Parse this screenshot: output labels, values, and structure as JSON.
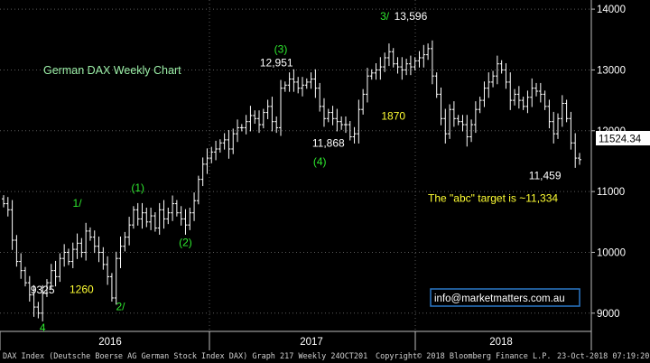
{
  "chart_data": {
    "type": "ohlc",
    "title": "German DAX Weekly Chart",
    "ylim": [
      8700,
      14150
    ],
    "y_ticks": [
      9000,
      10000,
      11000,
      12000,
      13000,
      14000
    ],
    "y_tick_labels": [
      "9000",
      "10000",
      "11000",
      "12000",
      "13000",
      "14000"
    ],
    "x_labels": [
      "2016",
      "2017",
      "2018"
    ],
    "last_price": 11524.34,
    "last_price_label": "11524.34",
    "colors": {
      "background": "#000000",
      "bars": "#ffffff",
      "grid": "#5a5a5a",
      "green_label": "#2ee82e",
      "yellow_label": "#ffff33",
      "title": "#9cf0a8",
      "white_label": "#ffffff",
      "email_box": "#2a78c8"
    },
    "series": [
      {
        "name": "DAX Index",
        "close": [
          10800,
          10700,
          10200,
          9850,
          9700,
          9500,
          9300,
          9100,
          9000,
          9325,
          9500,
          9700,
          9600,
          9900,
          10000,
          9850,
          10050,
          10150,
          10000,
          10350,
          10250,
          10100,
          10000,
          9800,
          9600,
          9250,
          9900,
          10100,
          10250,
          10450,
          10700,
          10550,
          10650,
          10500,
          10600,
          10400,
          10700,
          10550,
          10650,
          10800,
          10650,
          10550,
          10450,
          10650,
          10850,
          11200,
          11450,
          11550,
          11650,
          11700,
          11800,
          11850,
          11700,
          11950,
          12050,
          12050,
          12150,
          12250,
          12200,
          12100,
          12300,
          12400,
          12150,
          12050,
          12700,
          12750,
          12850,
          12800,
          12700,
          12750,
          12800,
          12850,
          12700,
          12400,
          12200,
          12300,
          12200,
          12150,
          12100,
          12100,
          11900,
          11950,
          12350,
          12600,
          12900,
          12950,
          13000,
          13050,
          13200,
          13300,
          13100,
          13050,
          13000,
          13100,
          13050,
          13150,
          13200,
          13250,
          13350,
          12900,
          12600,
          12200,
          11950,
          12350,
          12200,
          12150,
          12100,
          11900,
          12100,
          12350,
          12500,
          12700,
          12800,
          12900,
          13100,
          13000,
          12800,
          12500,
          12600,
          12500,
          12400,
          12550,
          12700,
          12650,
          12600,
          12400,
          12150,
          11950,
          12200,
          12450,
          12200,
          11800,
          11550,
          11524.34
        ]
      }
    ],
    "annotations": [
      {
        "text": "9325",
        "color": "white",
        "x_week": 9,
        "y": 9325
      },
      {
        "text": "4",
        "color": "green",
        "x_week": 9,
        "y": 8700
      },
      {
        "text": "1260",
        "color": "yellow",
        "x_week": 18,
        "y": 9330
      },
      {
        "text": "1/",
        "color": "green",
        "x_week": 17,
        "y": 10750
      },
      {
        "text": "2/",
        "color": "green",
        "x_week": 27,
        "y": 9050
      },
      {
        "text": "(1)",
        "color": "green",
        "x_week": 31,
        "y": 11000
      },
      {
        "text": "(2)",
        "color": "green",
        "x_week": 42,
        "y": 10100
      },
      {
        "text": "(3)",
        "color": "green",
        "x_week": 64,
        "y": 13280
      },
      {
        "text": "12,951",
        "color": "white",
        "x_week": 63,
        "y": 13060
      },
      {
        "text": "11,868",
        "color": "white",
        "x_week": 75,
        "y": 11740
      },
      {
        "text": "(4)",
        "color": "green",
        "x_week": 73,
        "y": 11430
      },
      {
        "text": "3/",
        "color": "green",
        "x_week": 88,
        "y": 13820
      },
      {
        "text": "13,596",
        "color": "white",
        "x_week": 94,
        "y": 13820
      },
      {
        "text": "1870",
        "color": "yellow",
        "x_week": 90,
        "y": 12180
      },
      {
        "text": "11,459",
        "color": "white",
        "x_week": 125,
        "y": 11200
      },
      {
        "text": "The \"abc\" target is ~11,334",
        "color": "yellow",
        "x_week": 113,
        "y": 10830
      }
    ],
    "email": "info@marketmatters.com.au"
  },
  "footer": {
    "description": "DAX Index (Deutsche Boerse AG German Stock Index DAX) Graph 217  Weekly 24OCT201",
    "copyright": "Copyright© 2018 Bloomberg Finance L.P.",
    "timestamp": "23-Oct-2018 07:19:20"
  }
}
